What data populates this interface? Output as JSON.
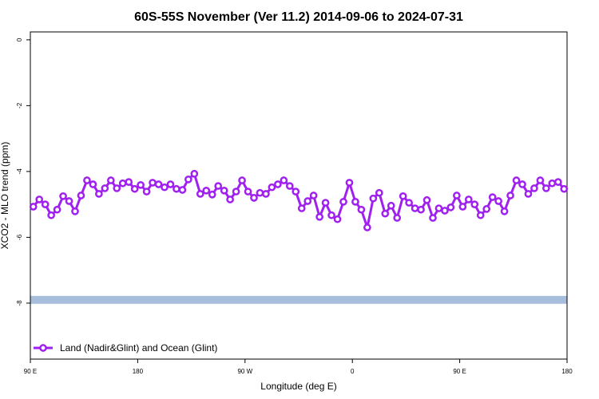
{
  "chart_data": {
    "type": "line",
    "title": "60S-55S November (Ver 11.2)   2014-09-06 to 2024-07-31",
    "xlabel": "Longitude (deg E)",
    "ylabel": "XCO2 - MLO trend (ppm)",
    "x": [
      92.5,
      97.5,
      102.5,
      107.5,
      112.5,
      117.5,
      122.5,
      127.5,
      132.5,
      137.5,
      142.5,
      147.5,
      152.5,
      157.5,
      162.5,
      167.5,
      172.5,
      177.5,
      182.5,
      187.5,
      192.5,
      197.5,
      202.5,
      207.5,
      212.5,
      217.5,
      222.5,
      227.5,
      232.5,
      237.5,
      242.5,
      247.5,
      252.5,
      257.5,
      262.5,
      267.5,
      272.5,
      277.5,
      282.5,
      287.5,
      292.5,
      297.5,
      302.5,
      307.5,
      312.5,
      317.5,
      322.5,
      327.5,
      332.5,
      337.5,
      342.5,
      347.5,
      352.5,
      357.5,
      362.5,
      367.5,
      372.5,
      377.5,
      382.5,
      387.5,
      392.5,
      397.5,
      402.5,
      407.5,
      412.5,
      417.5,
      422.5,
      427.5,
      432.5,
      437.5,
      442.5,
      447.5,
      452.5,
      457.5,
      462.5,
      467.5,
      472.5,
      477.5,
      482.5,
      487.5,
      492.5,
      497.5,
      502.5,
      507.5,
      512.5,
      517.5,
      522.5,
      527.5,
      532.5,
      537.5
    ],
    "series": [
      {
        "name": "Land (Nadir&Glint) and Ocean (Glint)",
        "color": "#a020f0",
        "values": [
          -5.07,
          -4.85,
          -5.0,
          -5.33,
          -5.16,
          -4.75,
          -4.9,
          -5.21,
          -4.73,
          -4.27,
          -4.39,
          -4.68,
          -4.51,
          -4.27,
          -4.51,
          -4.36,
          -4.32,
          -4.53,
          -4.41,
          -4.61,
          -4.34,
          -4.39,
          -4.48,
          -4.39,
          -4.53,
          -4.56,
          -4.24,
          -4.07,
          -4.68,
          -4.58,
          -4.7,
          -4.44,
          -4.58,
          -4.85,
          -4.61,
          -4.27,
          -4.61,
          -4.8,
          -4.65,
          -4.68,
          -4.48,
          -4.39,
          -4.27,
          -4.44,
          -4.61,
          -5.12,
          -4.9,
          -4.73,
          -5.38,
          -4.95,
          -5.33,
          -5.45,
          -4.92,
          -4.34,
          -4.92,
          -5.16,
          -5.7,
          -4.82,
          -4.65,
          -5.28,
          -5.04,
          -5.41,
          -4.75,
          -4.95,
          -5.12,
          -5.16,
          -4.87,
          -5.41,
          -5.12,
          -5.19,
          -5.09,
          -4.73,
          -5.07,
          -4.85,
          -5.0,
          -5.33,
          -5.14,
          -4.78,
          -4.9,
          -5.21,
          -4.73,
          -4.27,
          -4.39,
          -4.68,
          -4.51,
          -4.27,
          -4.51,
          -4.36,
          -4.32,
          -4.53
        ]
      }
    ],
    "band": [
      -8.02,
      -7.78
    ],
    "band_color": "#a6bddb",
    "xlim": [
      90,
      540
    ],
    "xticks": [
      {
        "value": 90,
        "label": "90 E"
      },
      180,
      {
        "value": 270,
        "label": "90 W"
      },
      {
        "value": 360,
        "label": "0"
      },
      {
        "value": 450,
        "label": "90 E"
      },
      {
        "value": 540,
        "label": "180"
      }
    ],
    "ylim": [
      -9.7,
      0.24
    ],
    "yticks": [
      -8,
      -6,
      -4,
      -2,
      0
    ],
    "legend": "bottomleft"
  }
}
